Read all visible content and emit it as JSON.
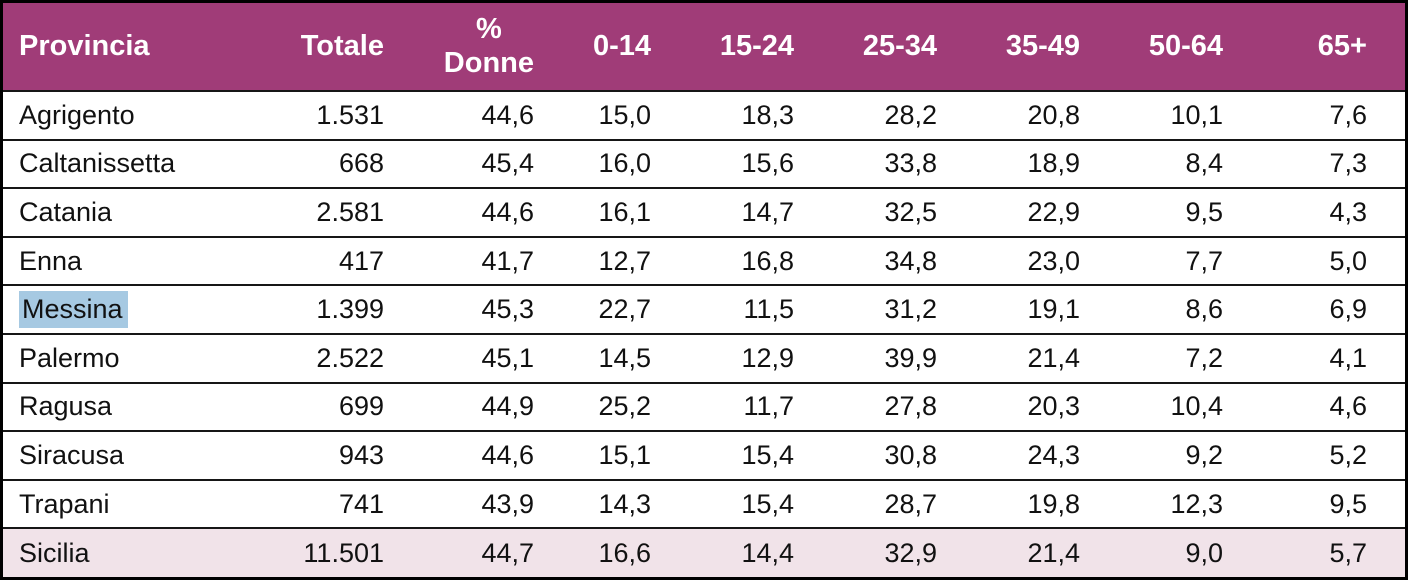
{
  "colors": {
    "header_bg": "#a03c78",
    "header_text": "#ffffff",
    "footer_bg": "#f1e3e9",
    "highlight_bg": "#a6c9e2",
    "border": "#000000",
    "row_divider": "#161616",
    "text": "#111111"
  },
  "table": {
    "highlighted_province": "Messina",
    "columns": [
      {
        "key": "provincia",
        "label": "Provincia"
      },
      {
        "key": "totale",
        "label": "Totale"
      },
      {
        "key": "pct-donne",
        "label": "% Donne",
        "line1": "%",
        "line2": "Donne"
      },
      {
        "key": "age-0-14",
        "label": "0-14"
      },
      {
        "key": "age-15-24",
        "label": "15-24"
      },
      {
        "key": "age-25-34",
        "label": "25-34"
      },
      {
        "key": "age-35-49",
        "label": "35-49"
      },
      {
        "key": "age-50-64",
        "label": "50-64"
      },
      {
        "key": "age-65-plus",
        "label": "65+"
      }
    ],
    "rows": [
      {
        "province": "Agrigento",
        "values": [
          "1.531",
          "44,6",
          "15,0",
          "18,3",
          "28,2",
          "20,8",
          "10,1",
          "7,6"
        ]
      },
      {
        "province": "Caltanissetta",
        "values": [
          "668",
          "45,4",
          "16,0",
          "15,6",
          "33,8",
          "18,9",
          "8,4",
          "7,3"
        ]
      },
      {
        "province": "Catania",
        "values": [
          "2.581",
          "44,6",
          "16,1",
          "14,7",
          "32,5",
          "22,9",
          "9,5",
          "4,3"
        ]
      },
      {
        "province": "Enna",
        "values": [
          "417",
          "41,7",
          "12,7",
          "16,8",
          "34,8",
          "23,0",
          "7,7",
          "5,0"
        ]
      },
      {
        "province": "Messina",
        "highlighted": true,
        "values": [
          "1.399",
          "45,3",
          "22,7",
          "11,5",
          "31,2",
          "19,1",
          "8,6",
          "6,9"
        ]
      },
      {
        "province": "Palermo",
        "values": [
          "2.522",
          "45,1",
          "14,5",
          "12,9",
          "39,9",
          "21,4",
          "7,2",
          "4,1"
        ]
      },
      {
        "province": "Ragusa",
        "values": [
          "699",
          "44,9",
          "25,2",
          "11,7",
          "27,8",
          "20,3",
          "10,4",
          "4,6"
        ]
      },
      {
        "province": "Siracusa",
        "values": [
          "943",
          "44,6",
          "15,1",
          "15,4",
          "30,8",
          "24,3",
          "9,2",
          "5,2"
        ]
      },
      {
        "province": "Trapani",
        "values": [
          "741",
          "43,9",
          "14,3",
          "15,4",
          "28,7",
          "19,8",
          "12,3",
          "9,5"
        ]
      },
      {
        "province": "Sicilia",
        "footer": true,
        "values": [
          "11.501",
          "44,7",
          "16,6",
          "14,4",
          "32,9",
          "21,4",
          "9,0",
          "5,7"
        ]
      }
    ]
  }
}
